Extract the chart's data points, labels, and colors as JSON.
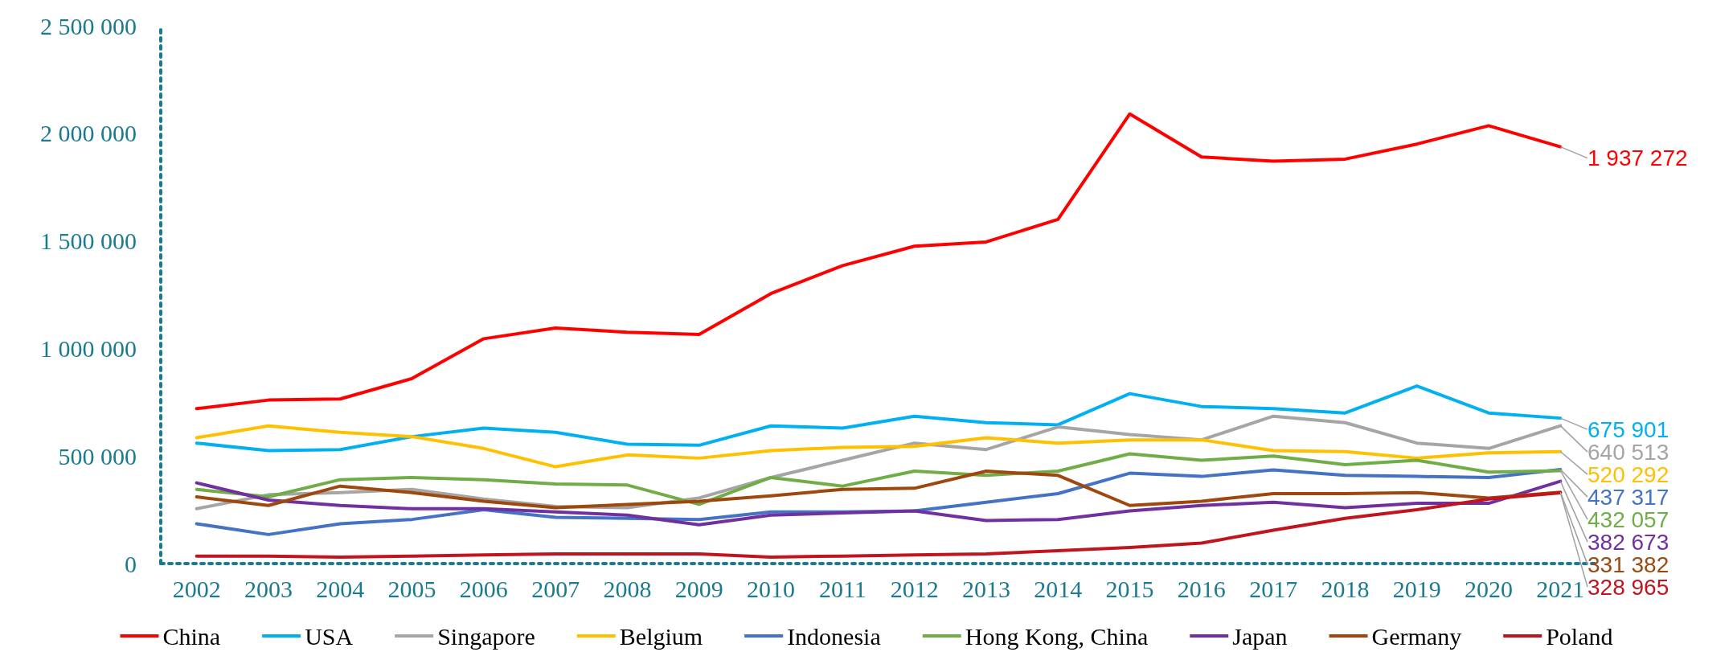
{
  "chart_data": {
    "type": "line",
    "categories": [
      "2002",
      "2003",
      "2004",
      "2005",
      "2006",
      "2007",
      "2008",
      "2009",
      "2010",
      "2011",
      "2012",
      "2013",
      "2014",
      "2015",
      "2016",
      "2017",
      "2018",
      "2019",
      "2020",
      "2021"
    ],
    "ylim": [
      0,
      2500000
    ],
    "yticks": [
      {
        "value": 0,
        "label": "0"
      },
      {
        "value": 500000,
        "label": "500 000"
      },
      {
        "value": 1000000,
        "label": "1 000 000"
      },
      {
        "value": 1500000,
        "label": "1 500 000"
      },
      {
        "value": 2000000,
        "label": "2 000 000"
      },
      {
        "value": 2500000,
        "label": "2 500 000"
      }
    ],
    "grid": false,
    "legend": "bottom",
    "marker": "none",
    "line_style": "solid",
    "series": [
      {
        "name": "China",
        "color": "#ff0000",
        "values": [
          720000,
          760000,
          765000,
          860000,
          1045000,
          1095000,
          1075000,
          1065000,
          1255000,
          1385000,
          1475000,
          1495000,
          1600000,
          2090000,
          1890000,
          1870000,
          1880000,
          1950000,
          2035000,
          1937272
        ],
        "value_labels": [
          null,
          null,
          null,
          null,
          null,
          null,
          null,
          null,
          null,
          null,
          null,
          null,
          null,
          null,
          null,
          null,
          null,
          null,
          null,
          "1 937 272"
        ]
      },
      {
        "name": "USA",
        "color": "#00b0f0",
        "values": [
          560000,
          525000,
          530000,
          590000,
          630000,
          610000,
          555000,
          550000,
          640000,
          630000,
          685000,
          655000,
          645000,
          790000,
          730000,
          720000,
          700000,
          825000,
          700000,
          675901
        ],
        "value_labels": [
          null,
          null,
          null,
          null,
          null,
          null,
          null,
          null,
          null,
          null,
          null,
          null,
          null,
          null,
          null,
          null,
          null,
          null,
          null,
          "675 901"
        ]
      },
      {
        "name": "Singapore",
        "color": "#a5a5a5",
        "values": [
          255000,
          320000,
          330000,
          345000,
          300000,
          265000,
          260000,
          305000,
          400000,
          480000,
          560000,
          530000,
          635000,
          600000,
          575000,
          685000,
          655000,
          560000,
          535000,
          640513
        ],
        "value_labels": [
          null,
          null,
          null,
          null,
          null,
          null,
          null,
          null,
          null,
          null,
          null,
          null,
          null,
          null,
          null,
          null,
          null,
          null,
          null,
          "640 513"
        ]
      },
      {
        "name": "Belgium",
        "color": "#ffc000",
        "values": [
          585000,
          640000,
          610000,
          590000,
          535000,
          450000,
          505000,
          490000,
          525000,
          540000,
          545000,
          585000,
          560000,
          575000,
          575000,
          525000,
          520000,
          490000,
          515000,
          520292
        ],
        "value_labels": [
          null,
          null,
          null,
          null,
          null,
          null,
          null,
          null,
          null,
          null,
          null,
          null,
          null,
          null,
          null,
          null,
          null,
          null,
          null,
          "520 292"
        ]
      },
      {
        "name": "Indonesia",
        "color": "#4472c4",
        "values": [
          185000,
          135000,
          185000,
          205000,
          250000,
          215000,
          210000,
          205000,
          240000,
          240000,
          245000,
          285000,
          325000,
          420000,
          405000,
          435000,
          410000,
          405000,
          400000,
          437317
        ],
        "value_labels": [
          null,
          null,
          null,
          null,
          null,
          null,
          null,
          null,
          null,
          null,
          null,
          null,
          null,
          null,
          null,
          null,
          null,
          null,
          null,
          "437 317"
        ]
      },
      {
        "name": "Hong Kong, China",
        "color": "#70ad47",
        "values": [
          345000,
          310000,
          390000,
          400000,
          390000,
          370000,
          365000,
          275000,
          400000,
          360000,
          430000,
          410000,
          430000,
          510000,
          480000,
          500000,
          460000,
          480000,
          425000,
          432057
        ],
        "value_labels": [
          null,
          null,
          null,
          null,
          null,
          null,
          null,
          null,
          null,
          null,
          null,
          null,
          null,
          null,
          null,
          null,
          null,
          null,
          null,
          "432 057"
        ]
      },
      {
        "name": "Japan",
        "color": "#7030a0",
        "values": [
          375000,
          295000,
          270000,
          255000,
          255000,
          240000,
          225000,
          180000,
          225000,
          235000,
          245000,
          200000,
          205000,
          245000,
          270000,
          285000,
          260000,
          280000,
          280000,
          382673
        ],
        "value_labels": [
          null,
          null,
          null,
          null,
          null,
          null,
          null,
          null,
          null,
          null,
          null,
          null,
          null,
          null,
          null,
          null,
          null,
          null,
          null,
          "382 673"
        ]
      },
      {
        "name": "Germany",
        "color": "#9e480e",
        "values": [
          310000,
          270000,
          360000,
          330000,
          290000,
          260000,
          275000,
          290000,
          315000,
          345000,
          350000,
          430000,
          410000,
          270000,
          290000,
          325000,
          325000,
          330000,
          305000,
          331382
        ],
        "value_labels": [
          null,
          null,
          null,
          null,
          null,
          null,
          null,
          null,
          null,
          null,
          null,
          null,
          null,
          null,
          null,
          null,
          null,
          null,
          null,
          "331 382"
        ]
      },
      {
        "name": "Poland",
        "color": "#c0141e",
        "values": [
          35000,
          35000,
          30000,
          35000,
          40000,
          45000,
          45000,
          45000,
          30000,
          35000,
          40000,
          45000,
          60000,
          75000,
          95000,
          155000,
          210000,
          250000,
          300000,
          328965
        ],
        "value_labels": [
          null,
          null,
          null,
          null,
          null,
          null,
          null,
          null,
          null,
          null,
          null,
          null,
          null,
          null,
          null,
          null,
          null,
          null,
          null,
          "328 965"
        ]
      }
    ]
  }
}
